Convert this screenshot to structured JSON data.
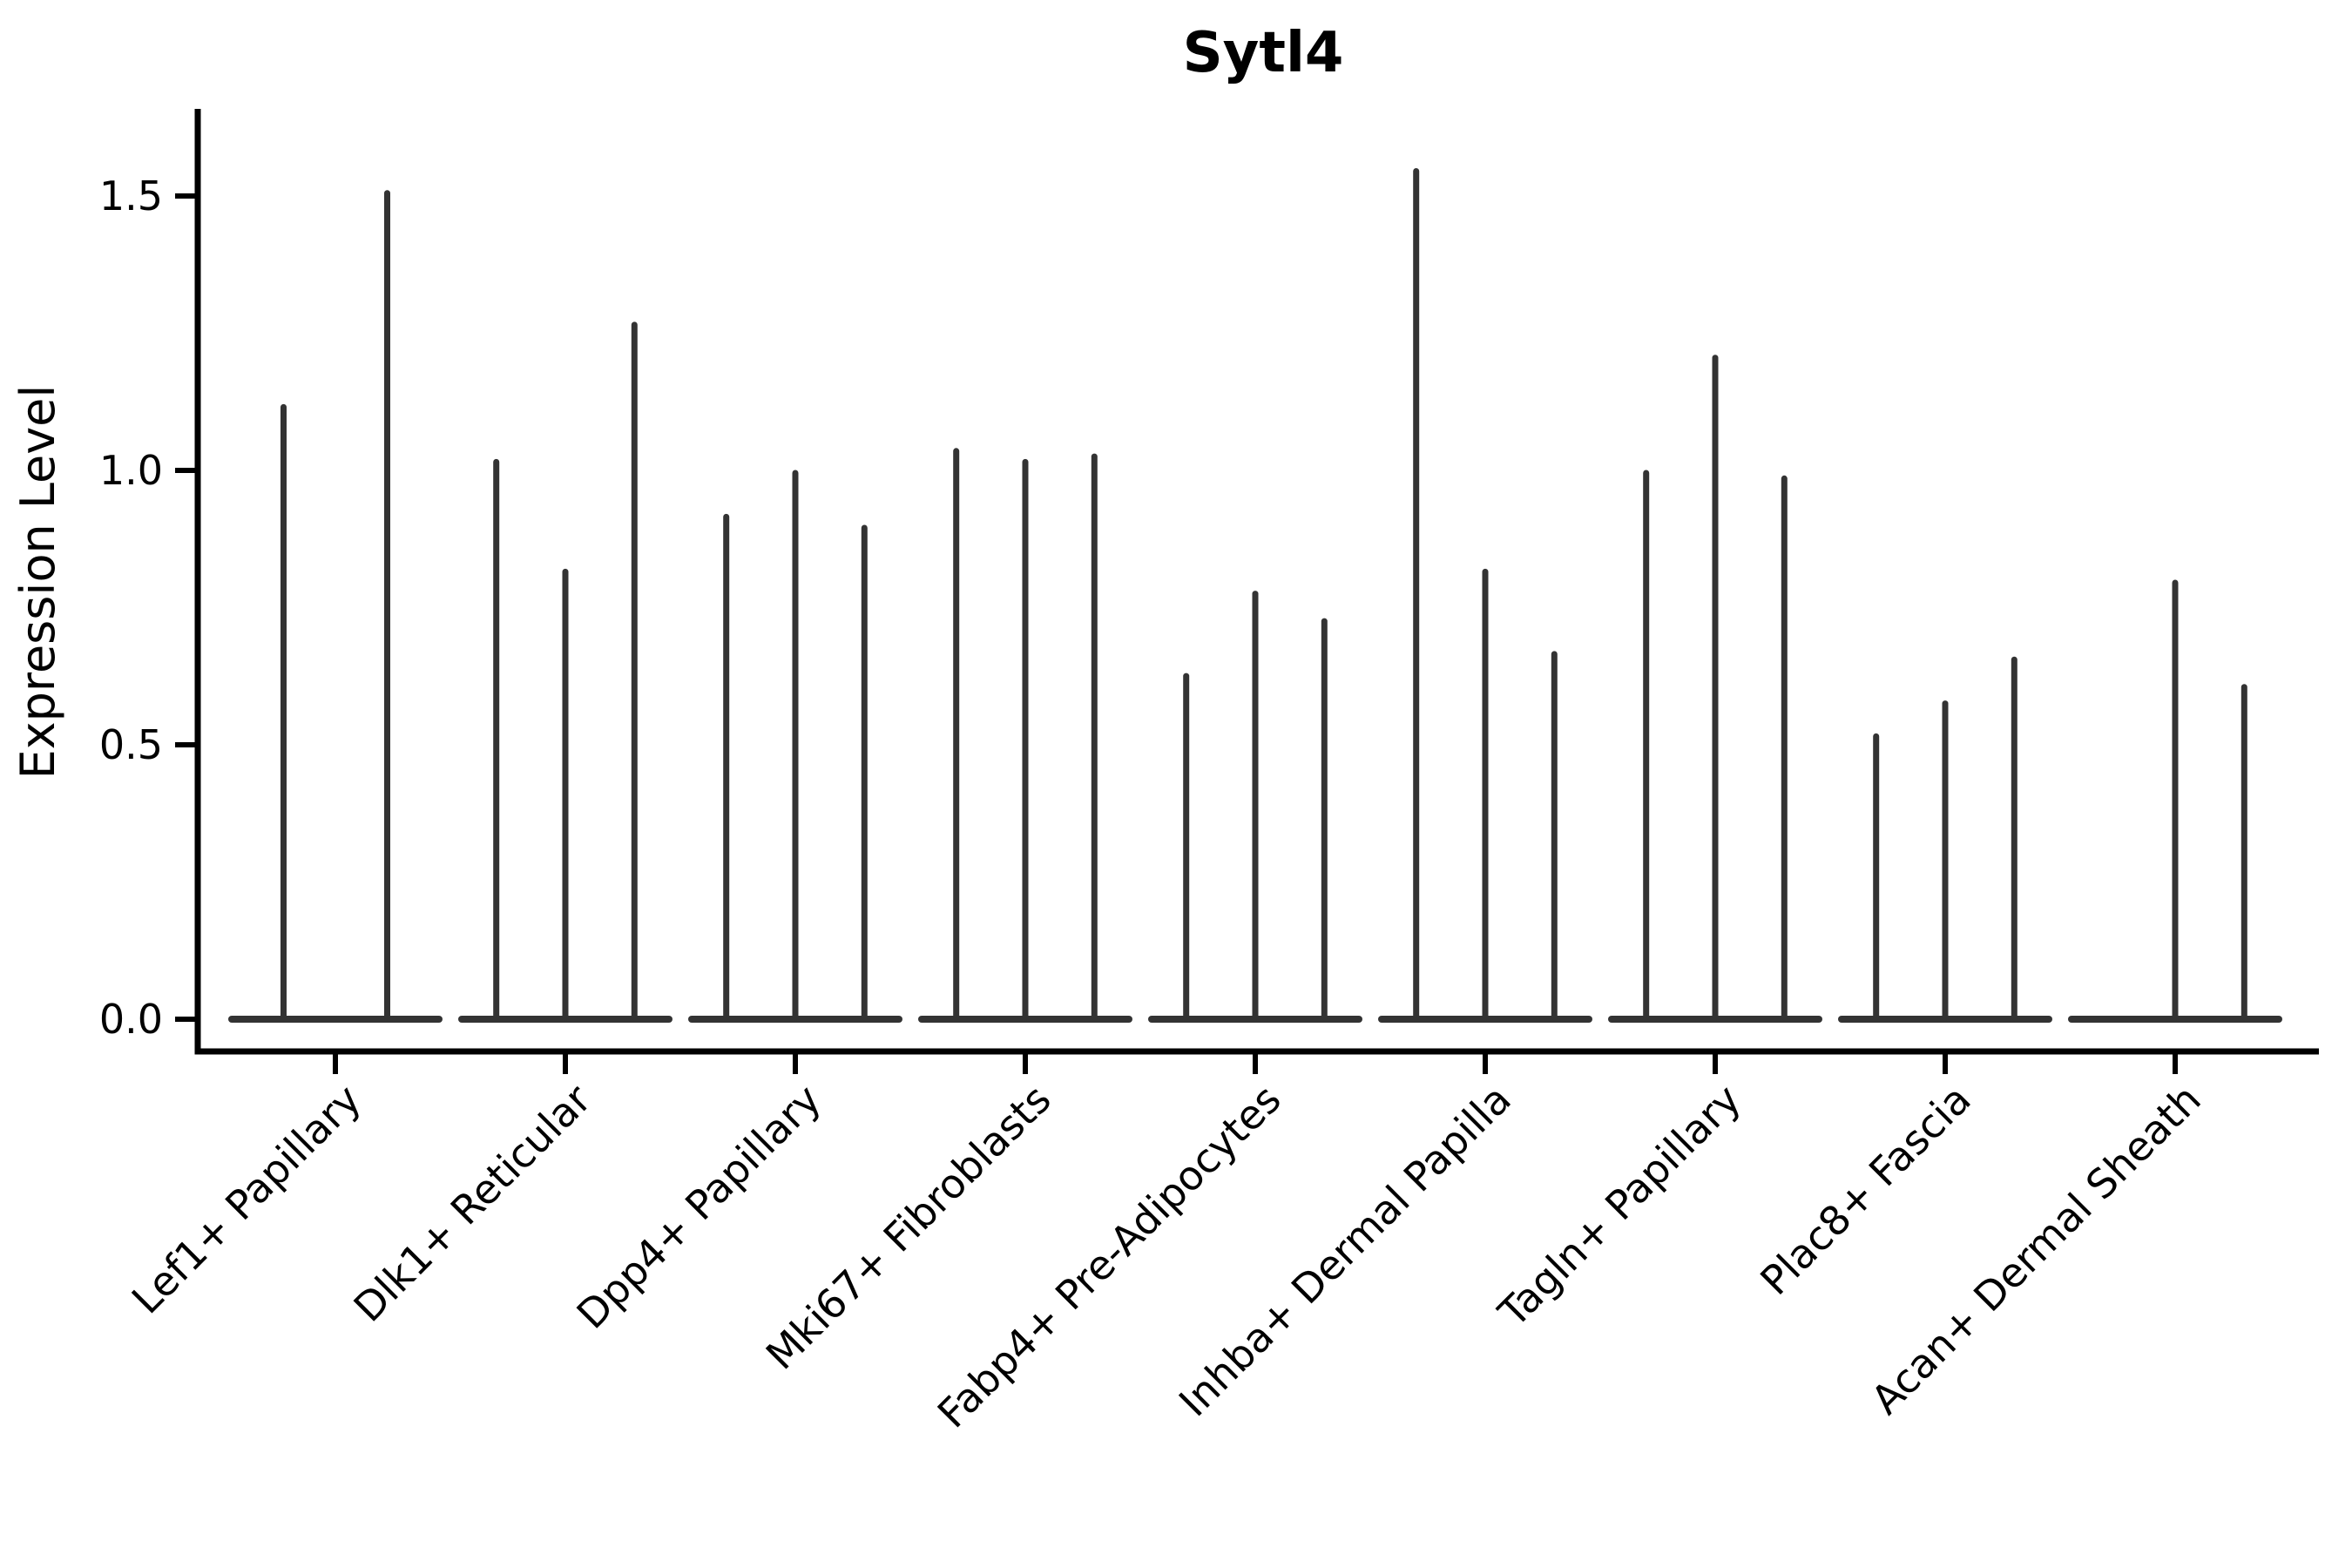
{
  "figure": {
    "title": "Sytl4",
    "ylabel": "Expression Level"
  },
  "chart_data": {
    "type": "violin",
    "title": "Sytl4",
    "xlabel": "",
    "ylabel": "Expression Level",
    "ylim": [
      -0.06,
      1.66
    ],
    "yticks": [
      0,
      0.5,
      1.0,
      1.5
    ],
    "ytick_labels": [
      "0.0",
      "0.5",
      "1.0",
      "1.5"
    ],
    "grid": false,
    "legend_position": "none",
    "xtick_rotation_deg": 45,
    "style": {
      "violin_color": "#333333",
      "axis_color": "#000000",
      "background_color": "#ffffff"
    },
    "categories": [
      "Lef1+ Papillary",
      "Dlk1+ Reticular",
      "Dpp4+ Papillary",
      "Mki67+ Fibroblasts",
      "Fabp4+ Pre-Adipocytes",
      "Inhba+ Dermal Papilla",
      "Tagln+ Papillary",
      "Plac8+ Fascia",
      "Acan+ Dermal Sheath"
    ],
    "series": [
      {
        "name": "Lef1+ Papillary",
        "violin_peaks": [
          1.12,
          1.51
        ]
      },
      {
        "name": "Dlk1+ Reticular",
        "violin_peaks": [
          1.02,
          0.82,
          1.27
        ]
      },
      {
        "name": "Dpp4+ Papillary",
        "violin_peaks": [
          0.92,
          1.0,
          0.9
        ]
      },
      {
        "name": "Mki67+ Fibroblasts",
        "violin_peaks": [
          1.04,
          1.02,
          1.03
        ]
      },
      {
        "name": "Fabp4+ Pre-Adipocytes",
        "violin_peaks": [
          0.63,
          0.78,
          0.73
        ]
      },
      {
        "name": "Inhba+ Dermal Papilla",
        "violin_peaks": [
          1.55,
          0.82,
          0.67
        ]
      },
      {
        "name": "Tagln+ Papillary",
        "violin_peaks": [
          1.0,
          1.21,
          0.99
        ]
      },
      {
        "name": "Plac8+ Fascia",
        "violin_peaks": [
          0.52,
          0.58,
          0.66
        ]
      },
      {
        "name": "Acan+ Dermal Sheath",
        "violin_peaks": [
          0,
          0.8,
          0.61
        ]
      }
    ]
  }
}
